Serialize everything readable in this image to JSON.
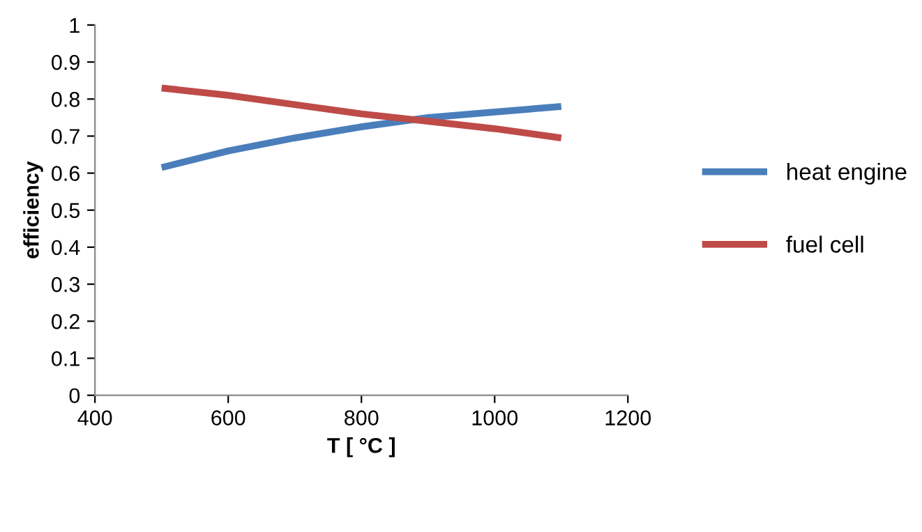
{
  "chart_data": {
    "type": "line",
    "xlabel": "T [ °C ]",
    "ylabel": "efficiency",
    "x": [
      500,
      600,
      700,
      800,
      900,
      1000,
      1100
    ],
    "series": [
      {
        "name": "heat engine",
        "color": "#4a7ebb",
        "values": [
          0.615,
          0.66,
          0.695,
          0.725,
          0.75,
          0.765,
          0.78
        ]
      },
      {
        "name": "fuel cell",
        "color": "#be4b48",
        "values": [
          0.83,
          0.81,
          0.785,
          0.76,
          0.74,
          0.72,
          0.695
        ]
      }
    ],
    "xlim": [
      400,
      1200
    ],
    "xticks": [
      400,
      600,
      800,
      1000,
      1200
    ],
    "ylim": [
      0,
      1
    ],
    "yticks": [
      0,
      {
        "value": 0.1,
        "label": "0.1"
      },
      {
        "value": 0.2,
        "label": "0.2"
      },
      {
        "value": 0.3,
        "label": "0.3"
      },
      {
        "value": 0.4,
        "label": "0.4"
      },
      {
        "value": 0.5,
        "label": "0.5"
      },
      {
        "value": 0.6,
        "label": "0.6"
      },
      {
        "value": 0.7,
        "label": "0.7"
      },
      {
        "value": 0.8,
        "label": "0.8"
      },
      {
        "value": 0.9,
        "label": "0.9"
      },
      1
    ],
    "grid": false,
    "legend": "right",
    "marker": "none",
    "line_style": "solid"
  }
}
